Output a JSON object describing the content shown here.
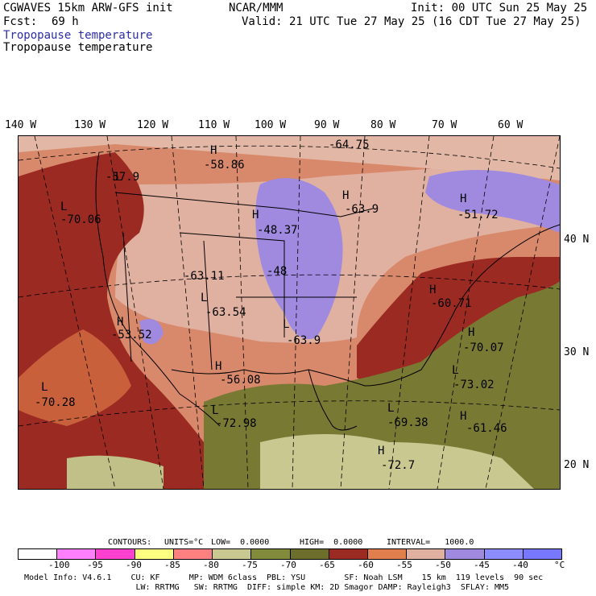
{
  "header": {
    "model": "CGWAVES 15km ARW-GFS init",
    "org": "NCAR/MMM",
    "init": "Init: 00 UTC Sun 25 May 25",
    "fcst_label": "Fcst:",
    "fcst_value": "69 h",
    "valid": "Valid: 21 UTC Tue 27 May 25 (16 CDT Tue 27 May 25)",
    "field_title_1": "Tropopause temperature",
    "field_title_2": "Tropopause temperature"
  },
  "longitudes": [
    "140 W",
    "130 W",
    "120 W",
    "110 W",
    "100 W",
    "90 W",
    "80 W",
    "70 W",
    "60 W"
  ],
  "latitudes": [
    "40 N",
    "30 N",
    "20 N"
  ],
  "centers": [
    {
      "type": "L",
      "value": "-57.9"
    },
    {
      "type": "L",
      "value": "-70.06"
    },
    {
      "type": "H",
      "value": "-58.86"
    },
    {
      "type": "",
      "value": "-64.75"
    },
    {
      "type": "H",
      "value": "-63.9"
    },
    {
      "type": "H",
      "value": "-51.72"
    },
    {
      "type": "H",
      "value": "-48.37"
    },
    {
      "type": "",
      "value": "-48"
    },
    {
      "type": "",
      "value": "-63.11"
    },
    {
      "type": "L",
      "value": "-63.54"
    },
    {
      "type": "H",
      "value": "-53.52"
    },
    {
      "type": "L",
      "value": "-63.9"
    },
    {
      "type": "H",
      "value": "-60.71"
    },
    {
      "type": "H",
      "value": "-70.07"
    },
    {
      "type": "L",
      "value": "-70.28"
    },
    {
      "type": "H",
      "value": "-56.08"
    },
    {
      "type": "L",
      "value": "-73.02"
    },
    {
      "type": "L",
      "value": "-72.98"
    },
    {
      "type": "L",
      "value": "-69.38"
    },
    {
      "type": "H",
      "value": "-61.46"
    },
    {
      "type": "H",
      "value": "-72.7"
    }
  ],
  "contour_info": {
    "contours": "CONTOURS:",
    "units": "UNITS=°C",
    "low": "LOW=  0.0000",
    "high": "HIGH=  0.0000",
    "interval": "INTERVAL=   1000.0"
  },
  "colorbar": {
    "colors": [
      "#ffffff",
      "#ff80ff",
      "#ff40d0",
      "#ffff80",
      "#ff8080",
      "#c8c890",
      "#828a3c",
      "#6e6e2c",
      "#9b2a22",
      "#e07e4e",
      "#e0b0a0",
      "#9f8ae0",
      "#8c8cff",
      "#7878ff"
    ],
    "ticks": [
      "-100",
      "-95",
      "-90",
      "-85",
      "-80",
      "-75",
      "-70",
      "-65",
      "-60",
      "-55",
      "-50",
      "-45",
      "-40"
    ],
    "unit": "°C"
  },
  "footer": {
    "line1": "Model Info: V4.6.1    CU: KF      MP: WDM 6class  PBL: YSU        SF: Noah LSM    15 km  119 levels  90 sec",
    "line2": "                       LW: RRTMG   SW: RRTMG  DIFF: simple KM: 2D Smagor DAMP: Rayleigh3  SFLAY: MM5"
  }
}
